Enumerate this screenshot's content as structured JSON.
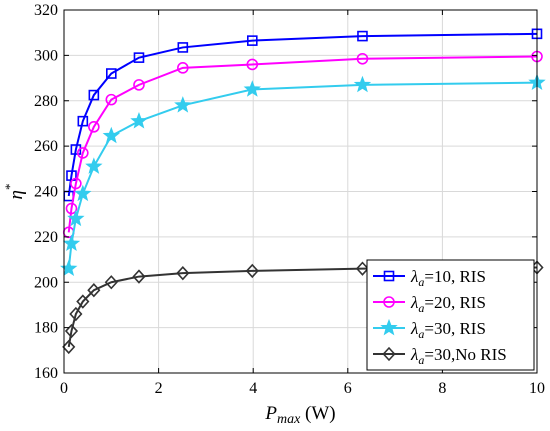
{
  "chart_data": {
    "type": "line",
    "title": "",
    "xlabel": "P_max (W)",
    "xlabel_parts": {
      "main": "P",
      "sub": "max",
      "unit": " (W)"
    },
    "ylabel": "η*",
    "ylabel_parts": {
      "main": "η",
      "sup": "*"
    },
    "xlim": [
      0,
      10
    ],
    "ylim": [
      160,
      320
    ],
    "xticks": [
      0,
      2,
      4,
      6,
      8,
      10
    ],
    "yticks": [
      160,
      180,
      200,
      220,
      240,
      260,
      280,
      300,
      320
    ],
    "grid": true,
    "legend_position": "bottom-right",
    "x": [
      0.1,
      0.158,
      0.251,
      0.398,
      0.631,
      1.0,
      1.585,
      2.512,
      3.981,
      6.31,
      10.0
    ],
    "series": [
      {
        "name": "λa=10, RIS",
        "legend": {
          "pre": "λ",
          "sub": "a",
          "post": "=10, RIS"
        },
        "color": "#0000ff",
        "marker": "square",
        "values": [
          238,
          247,
          258.5,
          271,
          282.5,
          292,
          299,
          303.5,
          306.5,
          308.5,
          309.5
        ]
      },
      {
        "name": "λa=20, RIS",
        "legend": {
          "pre": "λ",
          "sub": "a",
          "post": "=20, RIS"
        },
        "color": "#ff00ff",
        "marker": "circle",
        "values": [
          222,
          232.5,
          243.5,
          257,
          268.5,
          280.5,
          287,
          294.5,
          296,
          298.5,
          299.5
        ]
      },
      {
        "name": "λa=30, RIS",
        "legend": {
          "pre": "λ",
          "sub": "a",
          "post": "=30, RIS"
        },
        "color": "#33ccee",
        "marker": "star",
        "values": [
          206,
          217,
          228,
          239,
          251,
          264.5,
          271,
          278,
          285,
          287,
          288
        ]
      },
      {
        "name": "λa=30,No RIS",
        "legend": {
          "pre": "λ",
          "sub": "a",
          "post": "=30,No RIS"
        },
        "color": "#333333",
        "marker": "diamond",
        "values": [
          171.5,
          178.5,
          186,
          191.5,
          196.5,
          200,
          202.5,
          204,
          205,
          206,
          206.5
        ]
      }
    ]
  },
  "colors": {
    "axes": "#000000",
    "grid": "#d9d9d9",
    "background": "#ffffff"
  }
}
